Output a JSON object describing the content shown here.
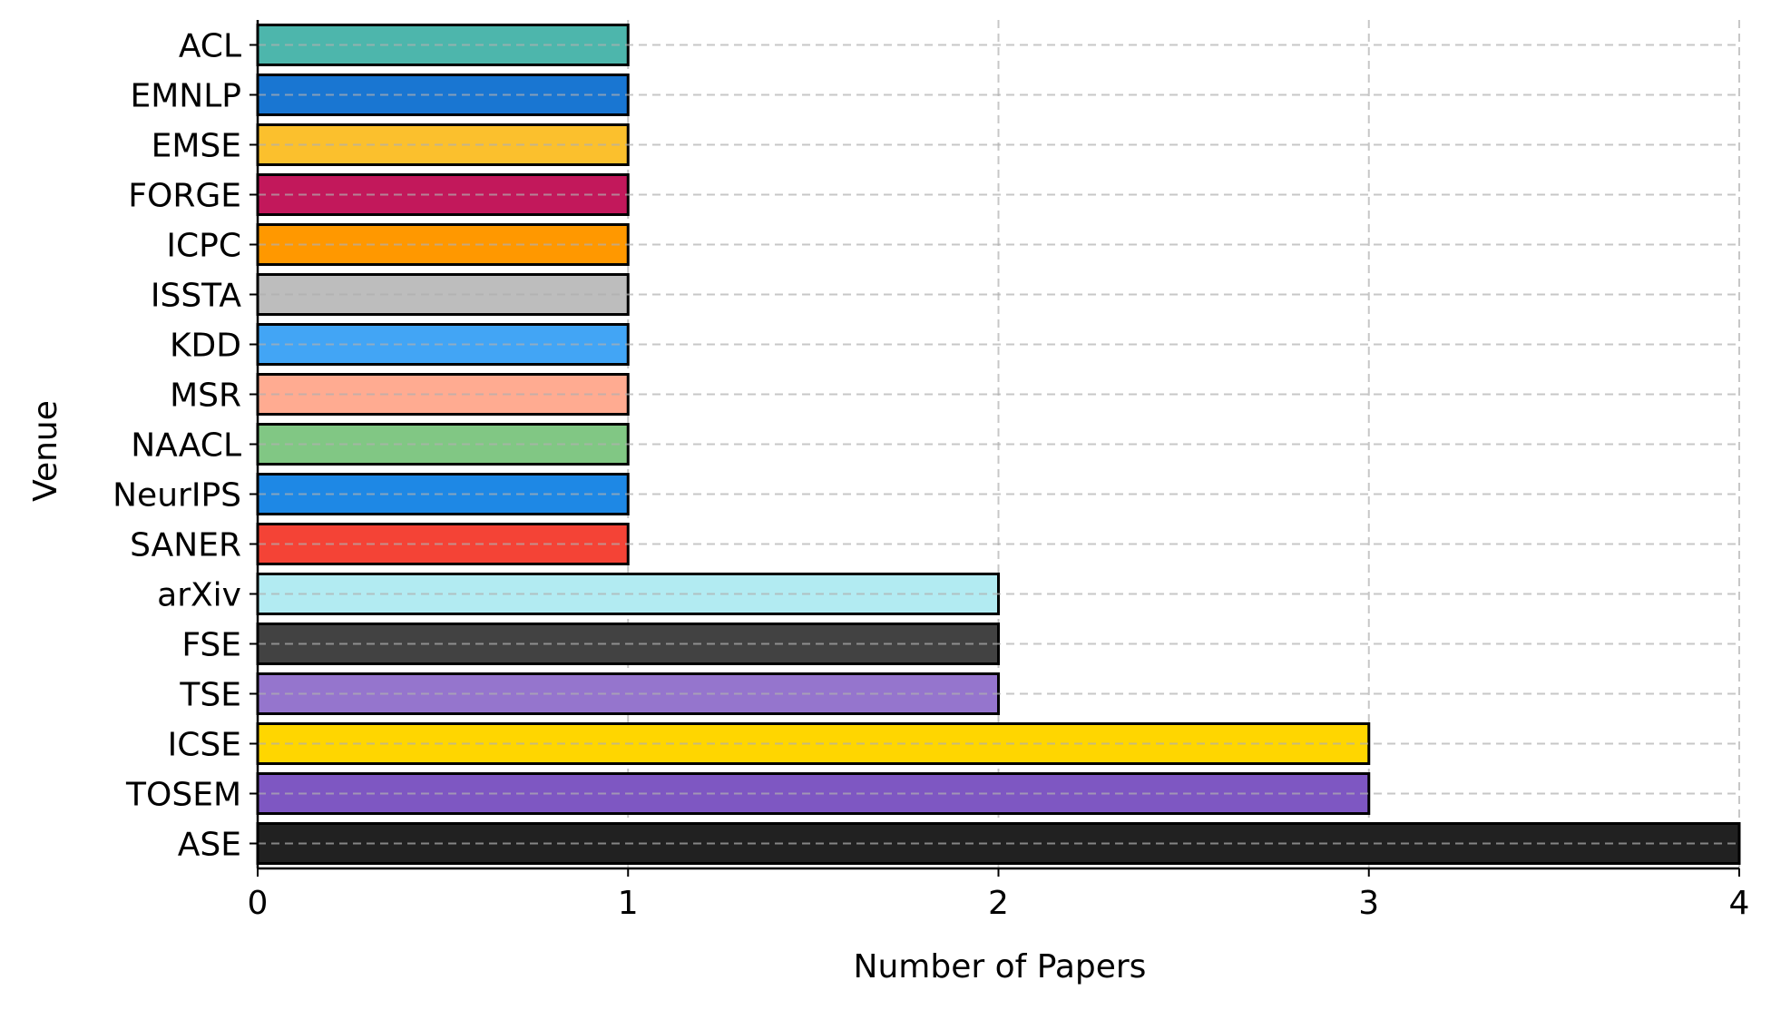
{
  "chart_data": {
    "type": "bar",
    "orientation": "horizontal",
    "title": "",
    "xlabel": "Number of Papers",
    "ylabel": "Venue",
    "xlim": [
      0,
      4
    ],
    "xticks": [
      "0",
      "1",
      "2",
      "3",
      "4"
    ],
    "grid": true,
    "categories": [
      "ACL",
      "EMNLP",
      "EMSE",
      "FORGE",
      "ICPC",
      "ISSTA",
      "KDD",
      "MSR",
      "NAACL",
      "NeurIPS",
      "SANER",
      "arXiv",
      "FSE",
      "TSE",
      "ICSE",
      "TOSEM",
      "ASE"
    ],
    "values": [
      1,
      1,
      1,
      1,
      1,
      1,
      1,
      1,
      1,
      1,
      1,
      2,
      2,
      2,
      3,
      3,
      4
    ],
    "colors": [
      "#4db6ac",
      "#1976d2",
      "#fbc02d",
      "#c2185b",
      "#ff9800",
      "#bdbdbd",
      "#42a5f5",
      "#ffab91",
      "#81c784",
      "#1e88e5",
      "#f44336",
      "#b2ebf2",
      "#424242",
      "#9575cd",
      "#ffd600",
      "#7e57c2",
      "#212121"
    ]
  }
}
